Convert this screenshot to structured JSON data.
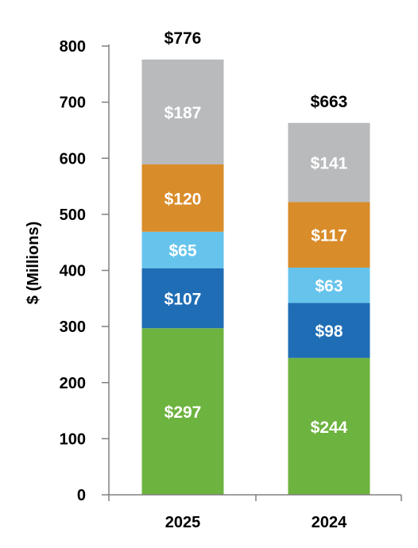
{
  "chart_data": {
    "type": "bar",
    "stacked": true,
    "title": "",
    "xlabel": "",
    "ylabel": "$ (Millions)",
    "ylim": [
      0,
      800
    ],
    "yticks": [
      0,
      100,
      200,
      300,
      400,
      500,
      600,
      700,
      800
    ],
    "grid": false,
    "legend": "none",
    "categories": [
      "2025",
      "2024"
    ],
    "series": [
      {
        "color": "#6db33f",
        "values": [
          297,
          244
        ],
        "labels": [
          "$297",
          "$244"
        ]
      },
      {
        "color": "#1f6db5",
        "values": [
          107,
          98
        ],
        "labels": [
          "$107",
          "$98"
        ]
      },
      {
        "color": "#66c4ec",
        "values": [
          65,
          63
        ],
        "labels": [
          "$65",
          "$63"
        ]
      },
      {
        "color": "#d98c2a",
        "values": [
          120,
          117
        ],
        "labels": [
          "$120",
          "$117"
        ]
      },
      {
        "color": "#b8babc",
        "values": [
          187,
          141
        ],
        "labels": [
          "$187",
          "$141"
        ]
      }
    ],
    "totals": [
      776,
      663
    ],
    "total_labels": [
      "$776",
      "$663"
    ]
  }
}
